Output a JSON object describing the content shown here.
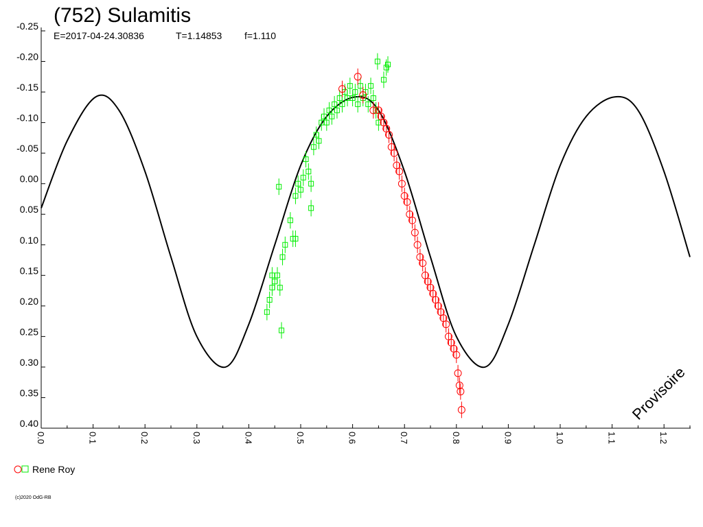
{
  "chart_data": {
    "type": "scatter",
    "title": "(752) Sulamitis",
    "subtitle": {
      "epoch": "E=2017-04-24.30836",
      "period": "T=1.14853",
      "f": "f=1.110"
    },
    "xlabel": "",
    "ylabel": "",
    "xlim": [
      0.0,
      1.25
    ],
    "ylim": [
      -0.25,
      0.4
    ],
    "y_inverted": true,
    "x_ticks": [
      "0.0",
      "0.1",
      "0.2",
      "0.3",
      "0.4",
      "0.5",
      "0.6",
      "0.7",
      "0.8",
      "0.9",
      "1.0",
      "1.1",
      "1.2"
    ],
    "y_ticks": [
      "-0.25",
      "-0.20",
      "-0.15",
      "-0.10",
      "-0.05",
      "0.00",
      "0.05",
      "0.10",
      "0.15",
      "0.20",
      "0.25",
      "0.30",
      "0.35",
      "0.40"
    ],
    "grid": false,
    "legend_position": "bottom-left",
    "legend_label": "Rene Roy",
    "watermark": "Provisoire",
    "copyright": "(c)2020 OdG-RB",
    "fit_curve": {
      "name": "fit",
      "color": "#000000",
      "points": [
        {
          "x": 0.0,
          "y": 0.04
        },
        {
          "x": 0.05,
          "y": -0.07
        },
        {
          "x": 0.105,
          "y": -0.142
        },
        {
          "x": 0.15,
          "y": -0.12
        },
        {
          "x": 0.2,
          "y": -0.02
        },
        {
          "x": 0.25,
          "y": 0.12
        },
        {
          "x": 0.3,
          "y": 0.25
        },
        {
          "x": 0.355,
          "y": 0.3
        },
        {
          "x": 0.4,
          "y": 0.23
        },
        {
          "x": 0.45,
          "y": 0.1
        },
        {
          "x": 0.5,
          "y": -0.03
        },
        {
          "x": 0.55,
          "y": -0.11
        },
        {
          "x": 0.605,
          "y": -0.142
        },
        {
          "x": 0.65,
          "y": -0.12
        },
        {
          "x": 0.7,
          "y": -0.02
        },
        {
          "x": 0.75,
          "y": 0.12
        },
        {
          "x": 0.8,
          "y": 0.25
        },
        {
          "x": 0.855,
          "y": 0.3
        },
        {
          "x": 0.9,
          "y": 0.23
        },
        {
          "x": 0.95,
          "y": 0.1
        },
        {
          "x": 1.0,
          "y": -0.03
        },
        {
          "x": 1.05,
          "y": -0.11
        },
        {
          "x": 1.105,
          "y": -0.142
        },
        {
          "x": 1.15,
          "y": -0.12
        },
        {
          "x": 1.2,
          "y": -0.02
        },
        {
          "x": 1.25,
          "y": 0.12
        }
      ]
    },
    "series": [
      {
        "marker": "square",
        "color": "#00ee00",
        "points": [
          {
            "x": 0.435,
            "y": 0.21
          },
          {
            "x": 0.44,
            "y": 0.19
          },
          {
            "x": 0.445,
            "y": 0.17
          },
          {
            "x": 0.45,
            "y": 0.16
          },
          {
            "x": 0.455,
            "y": 0.15
          },
          {
            "x": 0.46,
            "y": 0.17
          },
          {
            "x": 0.465,
            "y": 0.12
          },
          {
            "x": 0.463,
            "y": 0.24
          },
          {
            "x": 0.47,
            "y": 0.1
          },
          {
            "x": 0.48,
            "y": 0.06
          },
          {
            "x": 0.485,
            "y": 0.09
          },
          {
            "x": 0.49,
            "y": 0.02
          },
          {
            "x": 0.495,
            "y": 0.0
          },
          {
            "x": 0.5,
            "y": 0.01
          },
          {
            "x": 0.505,
            "y": -0.01
          },
          {
            "x": 0.51,
            "y": -0.04
          },
          {
            "x": 0.515,
            "y": -0.02
          },
          {
            "x": 0.52,
            "y": 0.0
          },
          {
            "x": 0.525,
            "y": -0.06
          },
          {
            "x": 0.53,
            "y": -0.08
          },
          {
            "x": 0.535,
            "y": -0.07
          },
          {
            "x": 0.54,
            "y": -0.1
          },
          {
            "x": 0.545,
            "y": -0.11
          },
          {
            "x": 0.55,
            "y": -0.1
          },
          {
            "x": 0.555,
            "y": -0.12
          },
          {
            "x": 0.56,
            "y": -0.11
          },
          {
            "x": 0.565,
            "y": -0.13
          },
          {
            "x": 0.57,
            "y": -0.12
          },
          {
            "x": 0.575,
            "y": -0.14
          },
          {
            "x": 0.58,
            "y": -0.13
          },
          {
            "x": 0.585,
            "y": -0.15
          },
          {
            "x": 0.59,
            "y": -0.14
          },
          {
            "x": 0.595,
            "y": -0.16
          },
          {
            "x": 0.6,
            "y": -0.14
          },
          {
            "x": 0.605,
            "y": -0.15
          },
          {
            "x": 0.61,
            "y": -0.13
          },
          {
            "x": 0.615,
            "y": -0.16
          },
          {
            "x": 0.62,
            "y": -0.14
          },
          {
            "x": 0.625,
            "y": -0.15
          },
          {
            "x": 0.63,
            "y": -0.13
          },
          {
            "x": 0.635,
            "y": -0.16
          },
          {
            "x": 0.64,
            "y": -0.14
          },
          {
            "x": 0.645,
            "y": -0.12
          },
          {
            "x": 0.65,
            "y": -0.1
          },
          {
            "x": 0.648,
            "y": -0.2
          },
          {
            "x": 0.665,
            "y": -0.19
          },
          {
            "x": 0.668,
            "y": -0.195
          },
          {
            "x": 0.66,
            "y": -0.17
          },
          {
            "x": 0.458,
            "y": 0.005
          },
          {
            "x": 0.52,
            "y": 0.04
          },
          {
            "x": 0.49,
            "y": 0.09
          },
          {
            "x": 0.445,
            "y": 0.15
          }
        ]
      },
      {
        "marker": "circle",
        "color": "#ff0000",
        "points": [
          {
            "x": 0.58,
            "y": -0.155
          },
          {
            "x": 0.61,
            "y": -0.175
          },
          {
            "x": 0.62,
            "y": -0.145
          },
          {
            "x": 0.64,
            "y": -0.12
          },
          {
            "x": 0.65,
            "y": -0.12
          },
          {
            "x": 0.655,
            "y": -0.11
          },
          {
            "x": 0.66,
            "y": -0.1
          },
          {
            "x": 0.665,
            "y": -0.09
          },
          {
            "x": 0.67,
            "y": -0.08
          },
          {
            "x": 0.675,
            "y": -0.06
          },
          {
            "x": 0.68,
            "y": -0.05
          },
          {
            "x": 0.685,
            "y": -0.03
          },
          {
            "x": 0.69,
            "y": -0.02
          },
          {
            "x": 0.695,
            "y": 0.0
          },
          {
            "x": 0.7,
            "y": 0.02
          },
          {
            "x": 0.705,
            "y": 0.03
          },
          {
            "x": 0.71,
            "y": 0.05
          },
          {
            "x": 0.715,
            "y": 0.06
          },
          {
            "x": 0.72,
            "y": 0.08
          },
          {
            "x": 0.725,
            "y": 0.1
          },
          {
            "x": 0.73,
            "y": 0.12
          },
          {
            "x": 0.735,
            "y": 0.13
          },
          {
            "x": 0.74,
            "y": 0.15
          },
          {
            "x": 0.745,
            "y": 0.16
          },
          {
            "x": 0.75,
            "y": 0.17
          },
          {
            "x": 0.755,
            "y": 0.18
          },
          {
            "x": 0.76,
            "y": 0.19
          },
          {
            "x": 0.765,
            "y": 0.2
          },
          {
            "x": 0.77,
            "y": 0.21
          },
          {
            "x": 0.775,
            "y": 0.22
          },
          {
            "x": 0.78,
            "y": 0.23
          },
          {
            "x": 0.785,
            "y": 0.25
          },
          {
            "x": 0.79,
            "y": 0.26
          },
          {
            "x": 0.795,
            "y": 0.27
          },
          {
            "x": 0.8,
            "y": 0.28
          },
          {
            "x": 0.803,
            "y": 0.31
          },
          {
            "x": 0.806,
            "y": 0.33
          },
          {
            "x": 0.808,
            "y": 0.34
          },
          {
            "x": 0.81,
            "y": 0.37
          }
        ]
      }
    ]
  }
}
